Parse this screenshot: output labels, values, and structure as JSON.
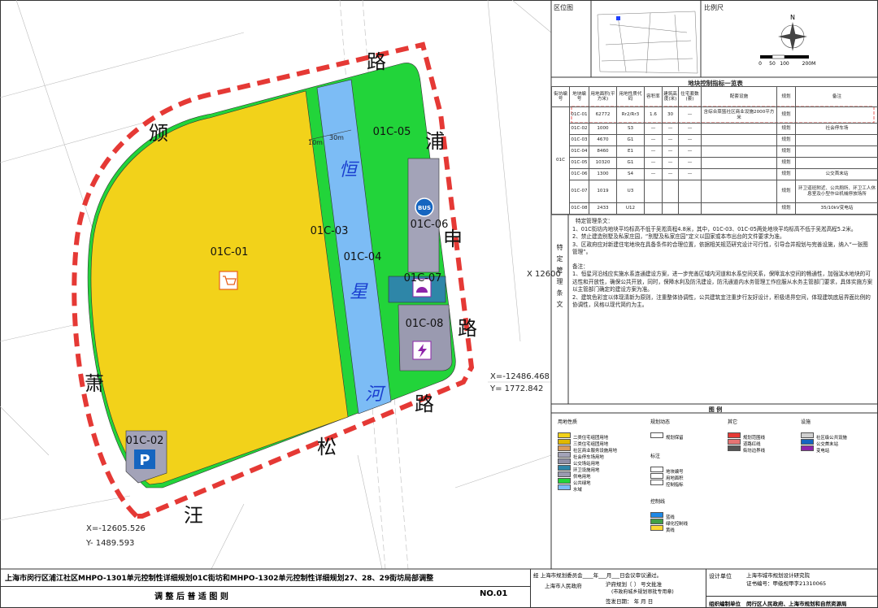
{
  "map": {
    "parcels": [
      "01C-01",
      "01C-02",
      "01C-03",
      "01C-04",
      "01C-05",
      "01C-06",
      "01C-07",
      "01C-08"
    ],
    "roads": [
      "颁",
      "路",
      "浦",
      "申",
      "路",
      "萧",
      "汪",
      "松",
      "路"
    ],
    "river": [
      "恒",
      "星",
      "河"
    ],
    "dimensions": [
      "10m",
      "30m"
    ],
    "coordinates": [
      "X=-12486.468",
      "Y= 1772.842",
      "X=-12605.526",
      "Y- 1489.593",
      "X 12600"
    ],
    "icons": {
      "bus": "BUS",
      "parking": "P"
    }
  },
  "location_map": {
    "title": "区位图"
  },
  "scale": {
    "title": "比例尺",
    "north": "N",
    "ticks": [
      "0",
      "50",
      "100",
      "200M"
    ]
  },
  "table": {
    "title": "地块控制指标一览表",
    "headers": [
      "街坊编号",
      "地块编号",
      "用地面积(平方米)",
      "用地性质代码",
      "容积率",
      "建筑高度(米)",
      "住宅套数(套)",
      "配套设施",
      "规划",
      "备注"
    ],
    "street": "01C",
    "rows": [
      {
        "parcel": "01C-01",
        "area": "62772",
        "code": "Rr2/Rr3",
        "far": "1.6",
        "height": "30",
        "units": "—",
        "facility": "含综合菜篮社区商业设施2000平方米",
        "plan": "规划"
      },
      {
        "parcel": "01C-02",
        "area": "1000",
        "code": "S3",
        "far": "—",
        "height": "—",
        "units": "—",
        "plan": "规划",
        "note": "社会停车场"
      },
      {
        "parcel": "01C-03",
        "area": "4670",
        "code": "G1",
        "far": "—",
        "height": "—",
        "units": "—",
        "plan": "规划"
      },
      {
        "parcel": "01C-04",
        "area": "8460",
        "code": "E1",
        "far": "—",
        "height": "—",
        "units": "—",
        "plan": "规划"
      },
      {
        "parcel": "01C-05",
        "area": "10320",
        "code": "G1",
        "far": "—",
        "height": "—",
        "units": "—",
        "plan": "规划"
      },
      {
        "parcel": "01C-06",
        "area": "1300",
        "code": "S4",
        "far": "—",
        "height": "—",
        "units": "—",
        "plan": "规划",
        "note": "公交首末站"
      },
      {
        "parcel": "01C-07",
        "area": "1019",
        "code": "U3",
        "plan": "规划",
        "note": "环卫道班附近、公共厕所、环卫工人休息室及小型作业机械停放场所"
      },
      {
        "parcel": "01C-08",
        "area": "2433",
        "code": "U12",
        "plan": "规划",
        "note": "35/10kV变电站"
      }
    ]
  },
  "clauses": {
    "label": "特定管理条文",
    "heading": "特定管理条文：",
    "items": [
      "1、01C街坊内地块平均标高不低于吴淞高程4.8米，其中，01C-03、01C-05两处地块平均标高不低于吴淞高程5.2米。",
      "2、禁止建造别墅及私家庄园，“别墅及私家庄园”定义以国家或本市出台的文件要求为准。",
      "3、区政府应对新建住宅地块在具备条件的合理位置，依据相关规范研究设计可行性，引导合并规划与完善设施，纳入“一张图管理”。"
    ],
    "remarks_heading": "备注：",
    "remarks": [
      "1、恒星河沿线应实施水系连通建设方案，进一步完善区域内河道和水系空间关系，保障滨水空间的畅通性，加强滨水地块的可达性和开放性，确保公共开放，同时，保障水利及防汛建设，防汛通道内水务管理工作应服从水务主管部门要求，具体实施方案以主管部门确定的建设方案为准。",
      "2、建筑色彩宜以体现清新为原则，注重整体协调性，公共建筑宜注重步行友好设计，积极退界空间，体现建筑底层界面比例的协调性，风格以现代简约为主。"
    ]
  },
  "legend": {
    "title": "图 例",
    "groups": [
      {
        "title": "用地性质",
        "items": [
          {
            "label": "二类住宅组团用地",
            "color": "#f2d21a"
          },
          {
            "label": "三类住宅组团用地",
            "color": "#e0b800"
          },
          {
            "label": "社区商业服务设施用地",
            "color": "#d99a5c"
          },
          {
            "label": "社会停车场用地",
            "color": "#a3a3b8"
          },
          {
            "label": "公交场站用地",
            "color": "#8f8fa6"
          },
          {
            "label": "环卫设施用地",
            "color": "#2e86a8"
          },
          {
            "label": "供电用地",
            "color": "#9a9ab0"
          },
          {
            "label": "公共绿地",
            "color": "#22d43a"
          },
          {
            "label": "水域",
            "color": "#7cbcf5"
          }
        ]
      },
      {
        "title": "规划动态",
        "items": [
          {
            "label": "规划保留",
            "color": "#ffffff"
          }
        ]
      },
      {
        "title": "其它",
        "items": [
          {
            "label": "规划范围线",
            "color": "#e53935"
          },
          {
            "label": "道路红线",
            "color": "#e57373"
          },
          {
            "label": "街坊边界线",
            "color": "#555555"
          }
        ]
      },
      {
        "title": "设施",
        "items": [
          {
            "label": "社区级公共设施",
            "color": "#d0d0d0"
          },
          {
            "label": "公交首末站",
            "color": "#1565c0"
          },
          {
            "label": "变电站",
            "color": "#8e24aa"
          }
        ]
      },
      {
        "title": "标注",
        "items": [
          {
            "label": "地块编号",
            "color": "#ffffff"
          },
          {
            "label": "用地面积",
            "color": "#ffffff"
          },
          {
            "label": "控制指标",
            "color": "#ffffff"
          }
        ]
      },
      {
        "title": "控制线",
        "items": [
          {
            "label": "蓝线",
            "color": "#1e88e5"
          },
          {
            "label": "绿化控制线",
            "color": "#43a047"
          },
          {
            "label": "黄线",
            "color": "#fdd835"
          }
        ]
      }
    ]
  },
  "footer": {
    "title": "上海市闵行区浦江社区MHPO-1301单元控制性详细规划01C街坊和MHPO-1302单元控制性详细规划27、28、29街坊局部调整",
    "subtitle": "调 整 后 普 适 图 则",
    "number": "NO.01",
    "approval": [
      "经 上海市规划委员会____年___月___日会议审议通过。",
      "上海市人民政府",
      "沪府规划〔    〕    号文批准",
      "(市政府城乡规划审批专用章)",
      "签发日期：     年     月     日"
    ],
    "design_label": "设计单位",
    "designer": "上海市城市规划设计研究院",
    "certificate": "证书编号：甲级规甲字21310065",
    "org_label": "组织编制单位",
    "org": "闵行区人民政府、上海市规划和自然资源局"
  }
}
